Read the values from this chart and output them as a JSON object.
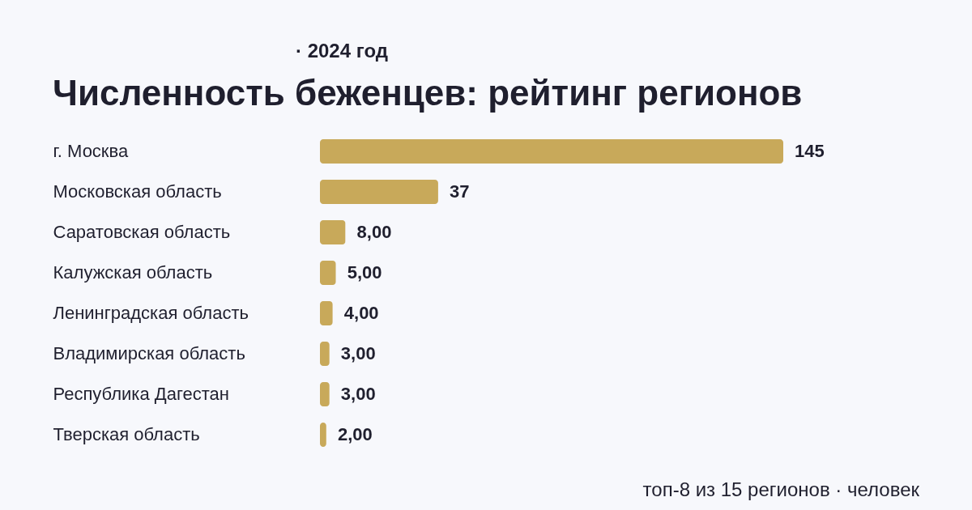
{
  "chart_data": {
    "type": "bar",
    "orientation": "horizontal",
    "title": "Численность беженцев: рейтинг регионов",
    "subtitle": "· 2024 год",
    "categories": [
      "г. Москва",
      "Московская область",
      "Саратовская область",
      "Калужская область",
      "Ленинградская область",
      "Владимирская область",
      "Республика Дагестан",
      "Тверская область"
    ],
    "values": [
      145,
      37,
      8,
      5,
      4,
      3,
      3,
      2
    ],
    "value_labels": [
      "145",
      "37",
      "8,00",
      "5,00",
      "4,00",
      "3,00",
      "3,00",
      "2,00"
    ],
    "color": "#c8a95a",
    "grid": false,
    "tick_labels": "y",
    "annotations": [
      "топ-8 из 15 регионов · человек"
    ]
  }
}
